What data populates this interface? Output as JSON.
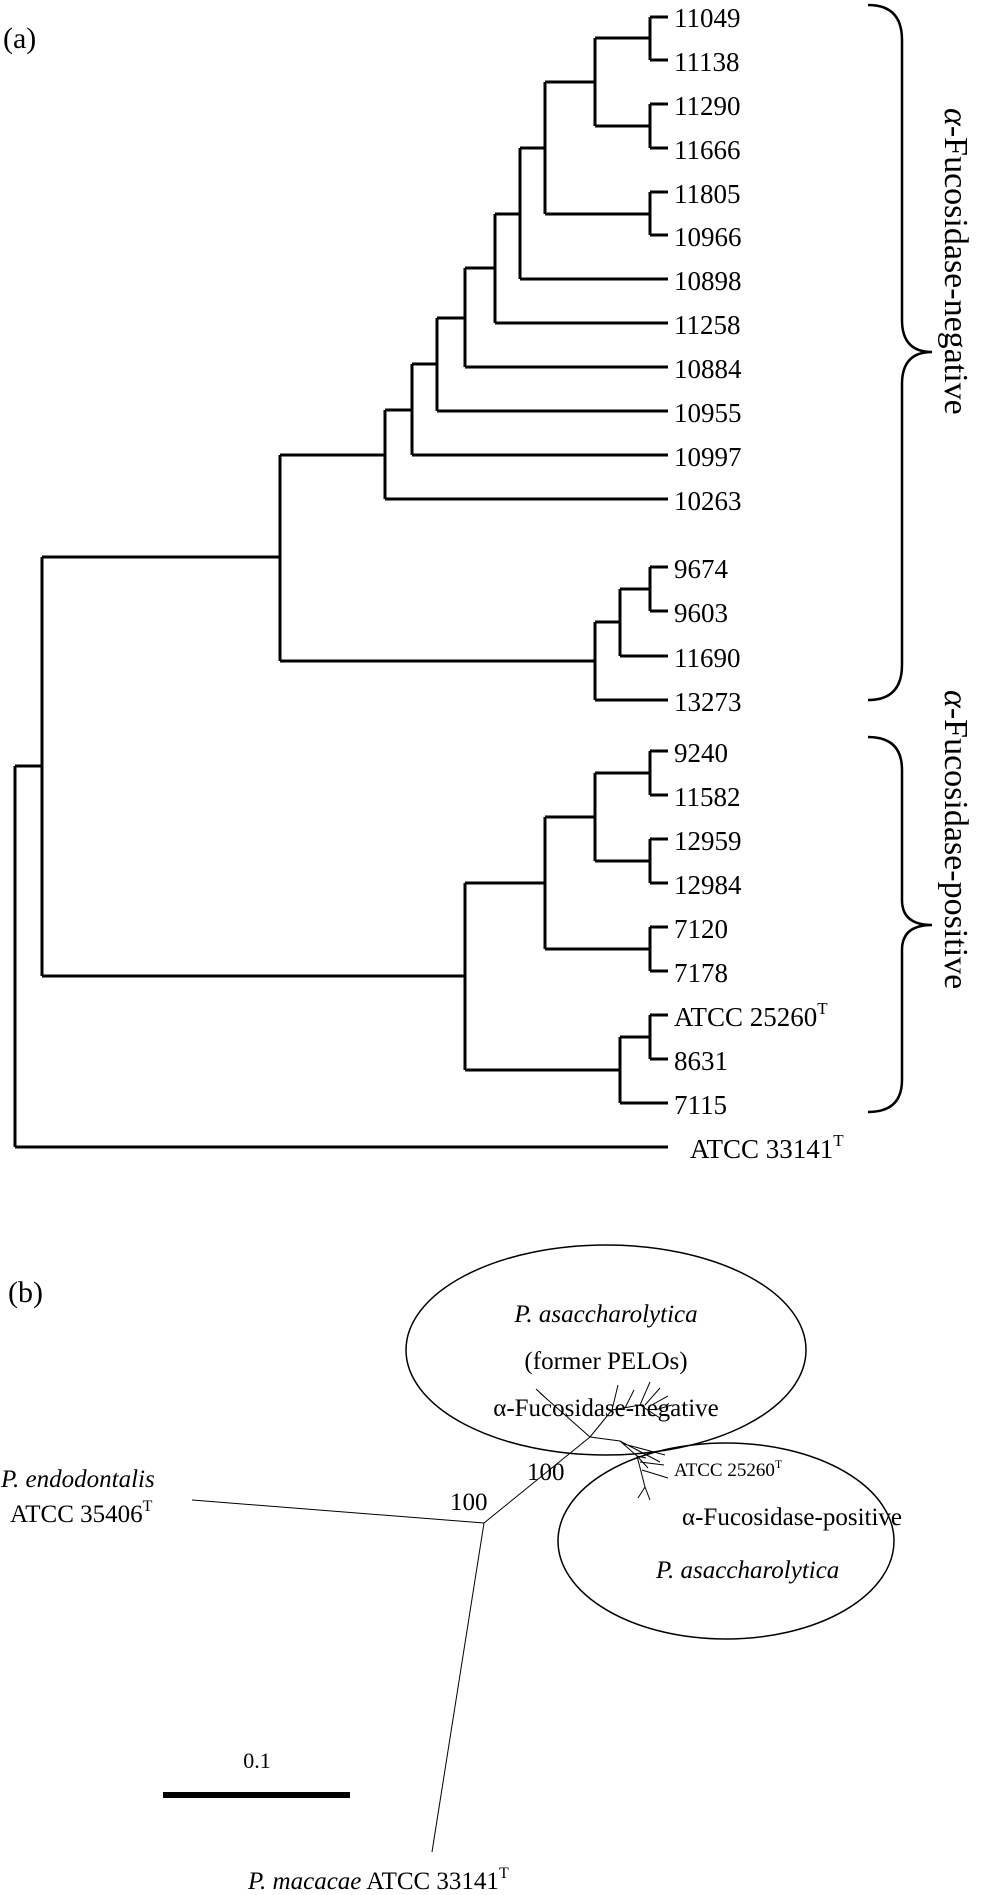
{
  "panel_a": {
    "label": "(a)",
    "leaves": [
      "11049",
      "11138",
      "11290",
      "11666",
      "11805",
      "10966",
      "10898",
      "11258",
      "10884",
      "10955",
      "10997",
      "10263",
      "9674",
      "9603",
      "11690",
      "13273",
      "9240",
      "11582",
      "12959",
      "12984",
      "7120",
      "7178",
      "ATCC 25260",
      "8631",
      "7115",
      "ATCC 33141"
    ],
    "type_strain_mark": "T",
    "group_negative": {
      "greek": "α",
      "text": "-Fucosidase-negative"
    },
    "group_positive": {
      "greek": "α",
      "text": "-Fucosidase-positive"
    }
  },
  "panel_b": {
    "label": "(b)",
    "cluster_neg": {
      "line1": "P. asaccharolytica",
      "line2": "(former PELOs)",
      "line3": "α-Fucosidase-negative"
    },
    "cluster_pos": {
      "label_strain": "ATCC 25260",
      "line1": "α-Fucosidase-positive",
      "line2": "P. asaccharolytica"
    },
    "endodontalis": {
      "line1": "P. endodontalis",
      "line2": "ATCC 35406"
    },
    "macacae": {
      "species": "P. macacae",
      "strain": "ATCC 33141"
    },
    "bootstrap": [
      "100",
      "100"
    ],
    "scale": "0.1",
    "type_strain_mark": "T"
  }
}
